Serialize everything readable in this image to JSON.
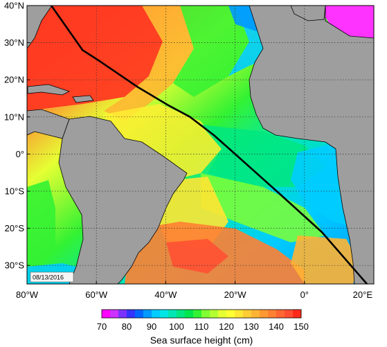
{
  "map": {
    "date_label": "08/13/2016",
    "lat_ticks": [
      "40°N",
      "30°N",
      "20°N",
      "10°N",
      "0°",
      "10°S",
      "20°S",
      "30°S"
    ],
    "lon_ticks": [
      "80°W",
      "60°W",
      "40°W",
      "20°W",
      "0°",
      "20°E"
    ],
    "lat_range": [
      -35,
      40
    ],
    "lon_range": [
      -80,
      20
    ],
    "grid": true,
    "land_color": "#9e9e9e",
    "track_color": "#000000",
    "track_path": [
      [
        -73,
        40
      ],
      [
        -64,
        28
      ],
      [
        -59,
        25
      ],
      [
        -48,
        18
      ],
      [
        -39,
        13
      ],
      [
        -33,
        10
      ],
      [
        -26,
        5
      ],
      [
        -20,
        0
      ],
      [
        -8,
        -10
      ],
      [
        5,
        -21
      ],
      [
        18,
        -35
      ]
    ]
  },
  "colorbar": {
    "title": "Sea surface height (cm)",
    "ticks": [
      "70",
      "80",
      "90",
      "100",
      "110",
      "120",
      "130",
      "140",
      "150"
    ],
    "range": [
      70,
      150
    ],
    "colors": [
      "#ff00ff",
      "#cc33ff",
      "#7a33ff",
      "#3333ff",
      "#0066ff",
      "#0099ff",
      "#00ccff",
      "#00e6e6",
      "#00e6b3",
      "#00e680",
      "#00e64d",
      "#33f233",
      "#80ff33",
      "#b3ff33",
      "#e6ff33",
      "#ffff33",
      "#ffe633",
      "#ffcc33",
      "#ffb333",
      "#ff9933",
      "#ff8033",
      "#ff6633",
      "#ff4d33",
      "#ff2a1a"
    ]
  }
}
